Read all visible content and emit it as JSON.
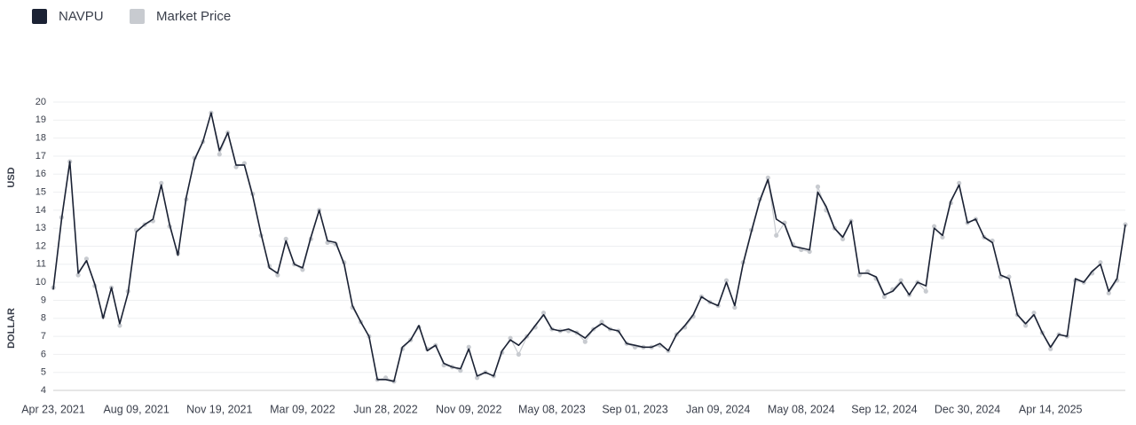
{
  "chart_data": {
    "type": "line",
    "ylabel": [
      "USD",
      "DOLLAR"
    ],
    "categories": [
      "Apr 23, 2021",
      null,
      null,
      null,
      null,
      null,
      null,
      null,
      null,
      null,
      "Aug 09, 2021",
      null,
      null,
      null,
      null,
      null,
      null,
      null,
      null,
      null,
      "Nov 19, 2021",
      null,
      null,
      null,
      null,
      null,
      null,
      null,
      null,
      null,
      "Mar 09, 2022",
      null,
      null,
      null,
      null,
      null,
      null,
      null,
      null,
      null,
      "Jun 28, 2022",
      null,
      null,
      null,
      null,
      null,
      null,
      null,
      null,
      null,
      "Nov 09, 2022",
      null,
      null,
      null,
      null,
      null,
      null,
      null,
      null,
      null,
      "May 08, 2023",
      null,
      null,
      null,
      null,
      null,
      null,
      null,
      null,
      null,
      "Sep 01, 2023",
      null,
      null,
      null,
      null,
      null,
      null,
      null,
      null,
      null,
      "Jan 09, 2024",
      null,
      null,
      null,
      null,
      null,
      null,
      null,
      null,
      null,
      "May 08, 2024",
      null,
      null,
      null,
      null,
      null,
      null,
      null,
      null,
      null,
      "Sep 12, 2024",
      null,
      null,
      null,
      null,
      null,
      null,
      null,
      null,
      null,
      "Dec 30, 2024",
      null,
      null,
      null,
      null,
      null,
      null,
      null,
      null,
      null,
      "Apr 14, 2025",
      null,
      null,
      null,
      null,
      null,
      null,
      null,
      null,
      null
    ],
    "series": [
      {
        "name": "NAVPU",
        "color": "#1b2234",
        "values": [
          9.6,
          13.5,
          16.7,
          10.5,
          11.2,
          9.9,
          8.0,
          9.7,
          7.7,
          9.4,
          12.8,
          13.2,
          13.5,
          15.4,
          13.2,
          11.5,
          14.7,
          16.8,
          17.8,
          19.4,
          17.3,
          18.3,
          16.5,
          16.5,
          14.8,
          12.7,
          10.8,
          10.5,
          12.3,
          11.0,
          10.8,
          12.5,
          14.0,
          12.3,
          12.2,
          11.0,
          8.7,
          7.8,
          7.0,
          4.6,
          4.6,
          4.5,
          6.4,
          6.8,
          7.6,
          6.2,
          6.5,
          5.5,
          5.3,
          5.2,
          6.3,
          4.8,
          5.0,
          4.8,
          6.2,
          6.8,
          6.5,
          7.0,
          7.6,
          8.2,
          7.4,
          7.3,
          7.4,
          7.2,
          6.9,
          7.4,
          7.7,
          7.4,
          7.3,
          6.6,
          6.5,
          6.4,
          6.4,
          6.6,
          6.2,
          7.1,
          7.6,
          8.2,
          9.2,
          8.9,
          8.7,
          10.0,
          8.7,
          11.0,
          12.8,
          14.5,
          15.7,
          13.5,
          13.2,
          12.0,
          11.9,
          11.8,
          15.0,
          14.2,
          13.0,
          12.5,
          13.4,
          10.5,
          10.5,
          10.3,
          9.3,
          9.5,
          10.0,
          9.3,
          10.0,
          9.8,
          13.0,
          12.6,
          14.5,
          15.4,
          13.3,
          13.5,
          12.5,
          12.2,
          10.4,
          10.2,
          8.2,
          7.7,
          8.2,
          7.2,
          6.4,
          7.1,
          7.0,
          10.2,
          10.0,
          10.6,
          11.0,
          9.5,
          10.2,
          13.2
        ]
      },
      {
        "name": "Market Price",
        "color": "#c8cbd0",
        "values": [
          9.7,
          13.6,
          16.7,
          10.4,
          11.3,
          9.8,
          8.1,
          9.7,
          7.6,
          9.5,
          12.9,
          13.2,
          13.4,
          15.5,
          13.1,
          11.6,
          14.6,
          16.9,
          17.8,
          19.4,
          17.1,
          18.3,
          16.4,
          16.6,
          14.9,
          12.6,
          10.9,
          10.4,
          12.4,
          11.0,
          10.7,
          12.4,
          14.0,
          12.2,
          12.1,
          11.1,
          8.6,
          7.8,
          7.0,
          4.6,
          4.7,
          4.5,
          6.3,
          6.8,
          7.5,
          6.3,
          6.5,
          5.4,
          5.3,
          5.1,
          6.4,
          4.7,
          5.0,
          4.8,
          6.1,
          6.9,
          6.0,
          7.0,
          7.5,
          8.3,
          7.4,
          7.3,
          7.3,
          7.2,
          6.7,
          7.4,
          7.8,
          7.4,
          7.3,
          6.6,
          6.4,
          6.4,
          6.4,
          6.5,
          6.2,
          7.1,
          7.5,
          8.1,
          9.2,
          8.9,
          8.7,
          10.1,
          8.6,
          11.1,
          12.9,
          14.6,
          15.8,
          12.6,
          13.3,
          12.1,
          11.8,
          11.7,
          15.3,
          14.0,
          13.0,
          12.4,
          13.4,
          10.4,
          10.6,
          10.2,
          9.2,
          9.6,
          10.1,
          9.3,
          10.0,
          9.5,
          13.1,
          12.5,
          14.4,
          15.5,
          13.3,
          13.5,
          12.5,
          12.3,
          10.3,
          10.3,
          8.2,
          7.6,
          8.3,
          7.2,
          6.3,
          7.1,
          7.0,
          10.1,
          10.0,
          10.5,
          11.1,
          9.4,
          10.1,
          13.2
        ]
      }
    ],
    "ylim": [
      4,
      20
    ],
    "yticks": [
      4,
      5,
      6,
      7,
      8,
      9,
      10,
      11,
      12,
      13,
      14,
      15,
      16,
      17,
      18,
      19,
      20
    ],
    "grid": true
  }
}
